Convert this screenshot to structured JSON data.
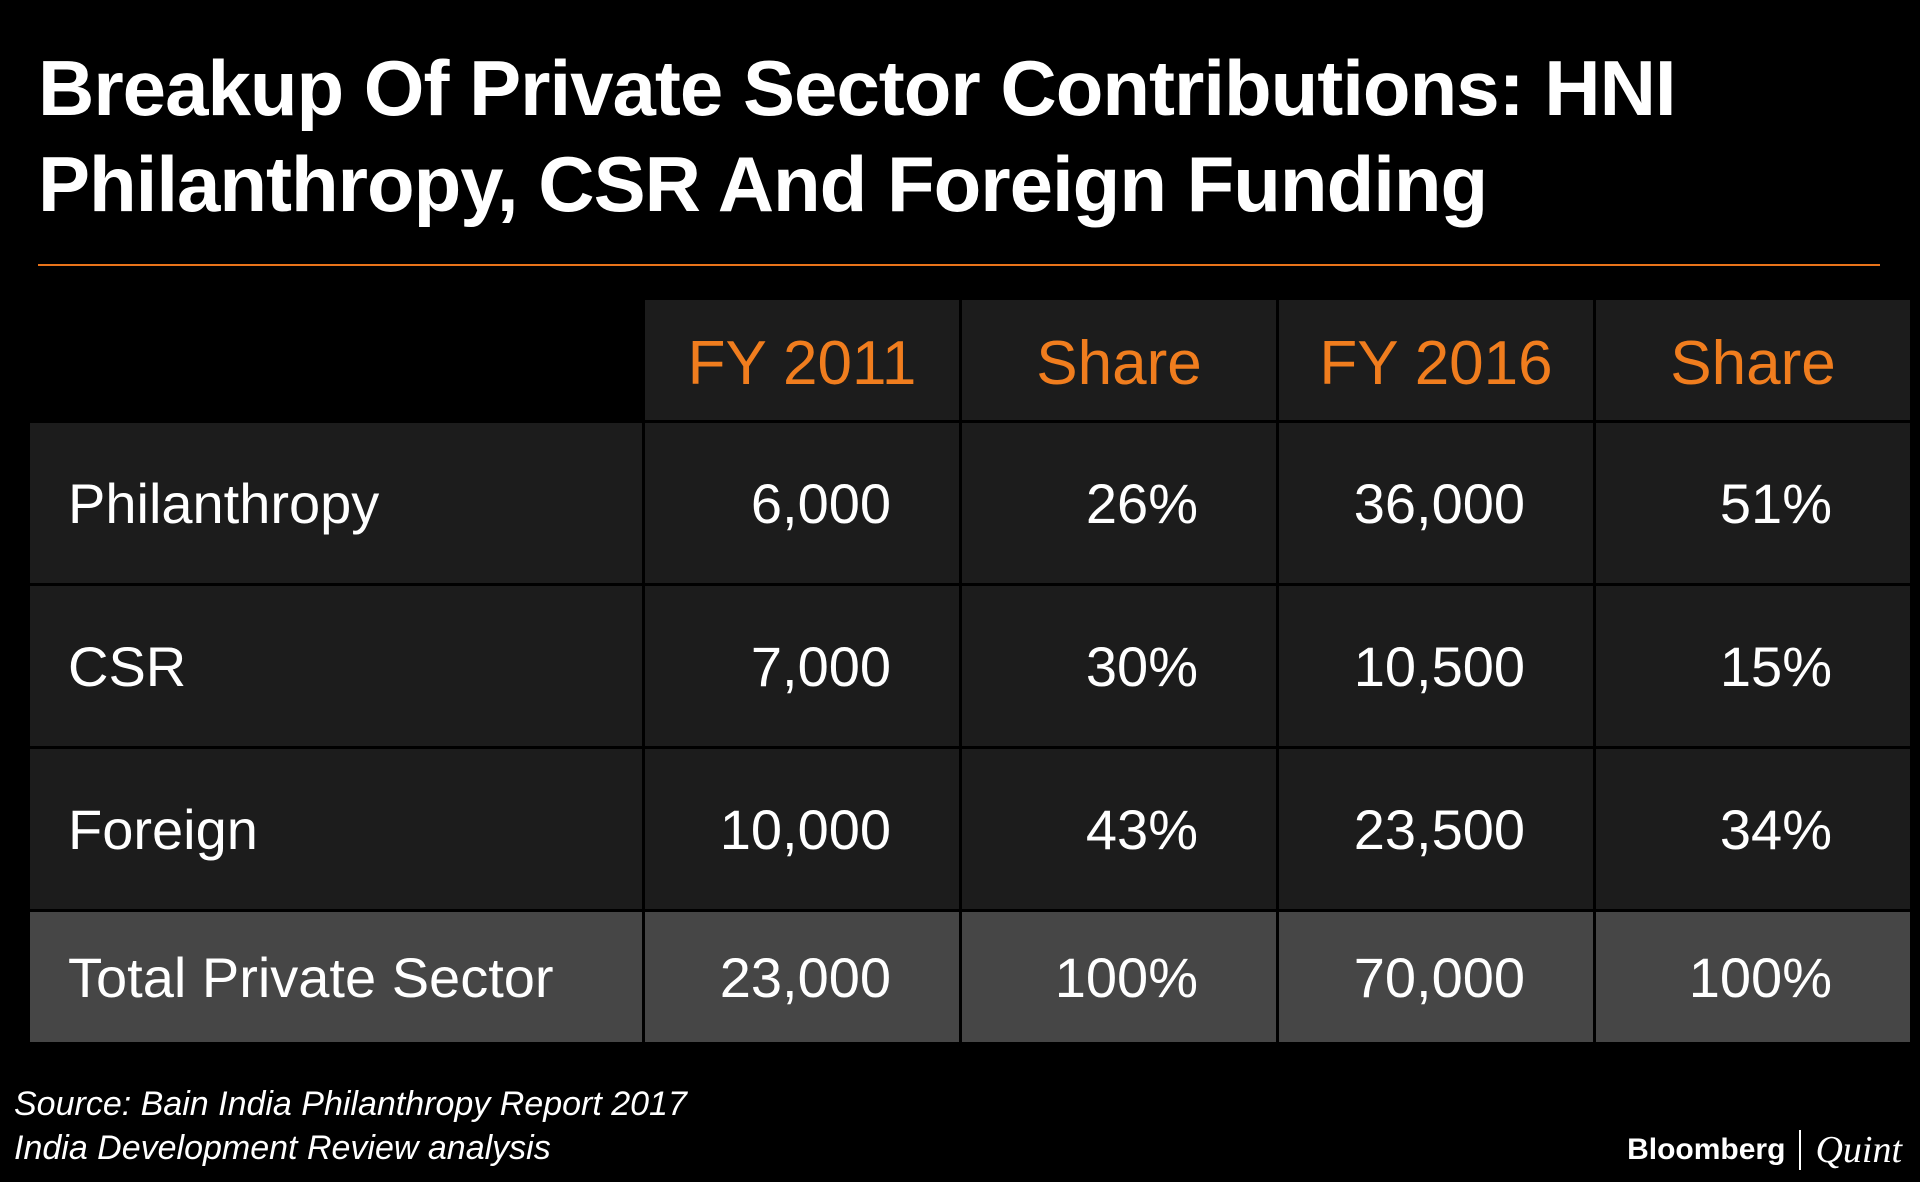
{
  "title_lines": [
    "Breakup Of Private Sector Contributions: HNI",
    "Philanthropy, CSR And Foreign Funding"
  ],
  "accent_color": "#f07d1e",
  "chart_data": {
    "type": "table",
    "columns": [
      "",
      "FY 2011",
      "Share",
      "FY 2016",
      "Share"
    ],
    "rows": [
      {
        "label": "Philanthropy",
        "fy2011": "6,000",
        "share2011": "26%",
        "fy2016": "36,000",
        "share2016": "51%"
      },
      {
        "label": "CSR",
        "fy2011": "7,000",
        "share2011": "30%",
        "fy2016": "10,500",
        "share2016": "15%"
      },
      {
        "label": "Foreign",
        "fy2011": "10,000",
        "share2011": "43%",
        "fy2016": "23,500",
        "share2016": "34%"
      }
    ],
    "total": {
      "label": "Total Private Sector",
      "fy2011": "23,000",
      "share2011": "100%",
      "fy2016": "70,000",
      "share2016": "100%"
    }
  },
  "source_lines": [
    "Source: Bain India Philanthropy Report 2017",
    "India Development Review analysis"
  ],
  "logo": {
    "brand": "Bloomberg",
    "sub": "Quint"
  }
}
